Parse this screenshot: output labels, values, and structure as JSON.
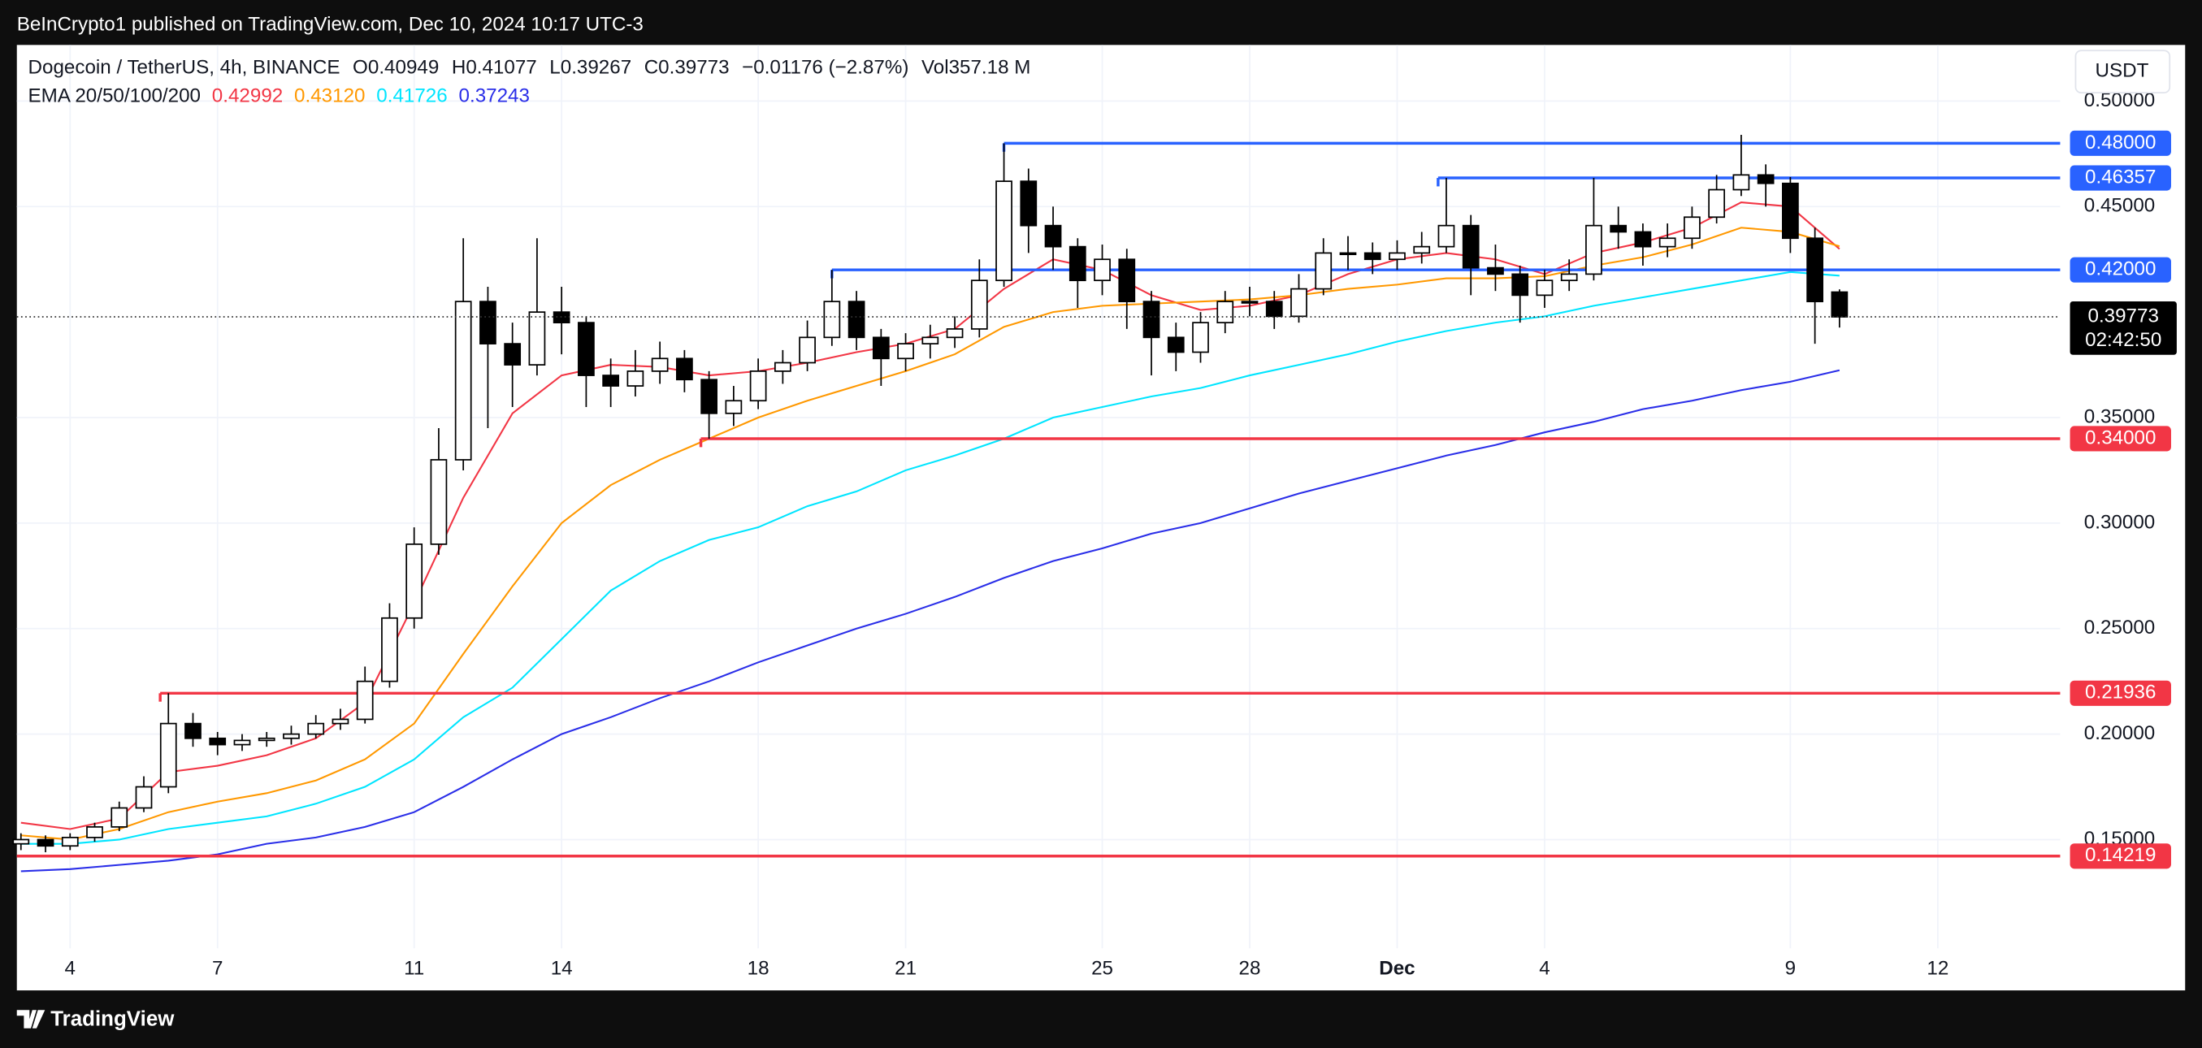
{
  "header": {
    "published": "BeInCrypto1 published on TradingView.com, Dec 10, 2024 10:17 UTC-3"
  },
  "footer": {
    "brand": "TradingView"
  },
  "chart_data": {
    "type": "candlestick",
    "title": "Dogecoin / TetherUS, 4h, BINANCE",
    "currency": "USDT",
    "legend_labels": [
      "O",
      "H",
      "L",
      "C"
    ],
    "change": "−0.01176 (−2.87%)",
    "volume_label": "Vol",
    "volume": "357.18 M",
    "countdown": "02:42:50",
    "up_color": "#ffffff",
    "down_color": "#000000",
    "grid": true,
    "xlim": [
      "2024-11-02T22:00",
      "2024-12-14T11:45"
    ],
    "ylim": [
      0.0985,
      0.5266
    ],
    "xticks": [
      {
        "value": "2024-11-04T00:00",
        "label": "4"
      },
      {
        "value": "2024-11-07T00:00",
        "label": "7"
      },
      {
        "value": "2024-11-11T00:00",
        "label": "11"
      },
      {
        "value": "2024-11-14T00:00",
        "label": "14"
      },
      {
        "value": "2024-11-18T00:00",
        "label": "18"
      },
      {
        "value": "2024-11-21T00:00",
        "label": "21"
      },
      {
        "value": "2024-11-25T00:00",
        "label": "25"
      },
      {
        "value": "2024-11-28T00:00",
        "label": "28"
      },
      {
        "value": "2024-12-01T00:00",
        "label": "Dec"
      },
      {
        "value": "2024-12-04T00:00",
        "label": "4"
      },
      {
        "value": "2024-12-09T00:00",
        "label": "9"
      },
      {
        "value": "2024-12-12T00:00",
        "label": "12"
      }
    ],
    "yticks": [
      {
        "value": 0.15,
        "label": "0.15000"
      },
      {
        "value": 0.2,
        "label": "0.20000"
      },
      {
        "value": 0.25,
        "label": "0.25000"
      },
      {
        "value": 0.3,
        "label": "0.30000"
      },
      {
        "value": 0.35,
        "label": "0.35000"
      },
      {
        "value": 0.45,
        "label": "0.45000"
      },
      {
        "value": 0.5,
        "label": "0.50000"
      }
    ],
    "x": [
      "2024-11-03T00:00",
      "2024-11-03T12:00",
      "2024-11-04T00:00",
      "2024-11-04T12:00",
      "2024-11-05T00:00",
      "2024-11-05T12:00",
      "2024-11-06T00:00",
      "2024-11-06T12:00",
      "2024-11-07T00:00",
      "2024-11-07T12:00",
      "2024-11-08T00:00",
      "2024-11-08T12:00",
      "2024-11-09T00:00",
      "2024-11-09T12:00",
      "2024-11-10T00:00",
      "2024-11-10T12:00",
      "2024-11-11T00:00",
      "2024-11-11T12:00",
      "2024-11-12T00:00",
      "2024-11-12T12:00",
      "2024-11-13T00:00",
      "2024-11-13T12:00",
      "2024-11-14T00:00",
      "2024-11-14T12:00",
      "2024-11-15T00:00",
      "2024-11-15T12:00",
      "2024-11-16T00:00",
      "2024-11-16T12:00",
      "2024-11-17T00:00",
      "2024-11-17T12:00",
      "2024-11-18T00:00",
      "2024-11-18T12:00",
      "2024-11-19T00:00",
      "2024-11-19T12:00",
      "2024-11-20T00:00",
      "2024-11-20T12:00",
      "2024-11-21T00:00",
      "2024-11-21T12:00",
      "2024-11-22T00:00",
      "2024-11-22T12:00",
      "2024-11-23T00:00",
      "2024-11-23T12:00",
      "2024-11-24T00:00",
      "2024-11-24T12:00",
      "2024-11-25T00:00",
      "2024-11-25T12:00",
      "2024-11-26T00:00",
      "2024-11-26T12:00",
      "2024-11-27T00:00",
      "2024-11-27T12:00",
      "2024-11-28T00:00",
      "2024-11-28T12:00",
      "2024-11-29T00:00",
      "2024-11-29T12:00",
      "2024-11-30T00:00",
      "2024-11-30T12:00",
      "2024-12-01T00:00",
      "2024-12-01T12:00",
      "2024-12-02T00:00",
      "2024-12-02T12:00",
      "2024-12-03T00:00",
      "2024-12-03T12:00",
      "2024-12-04T00:00",
      "2024-12-04T12:00",
      "2024-12-05T00:00",
      "2024-12-05T12:00",
      "2024-12-06T00:00",
      "2024-12-06T12:00",
      "2024-12-07T00:00",
      "2024-12-07T12:00",
      "2024-12-08T00:00",
      "2024-12-08T12:00",
      "2024-12-09T00:00",
      "2024-12-09T12:00",
      "2024-12-10T00:00"
    ],
    "open": [
      0.148,
      0.15,
      0.147,
      0.151,
      0.156,
      0.165,
      0.175,
      0.205,
      0.198,
      0.195,
      0.197,
      0.198,
      0.2,
      0.205,
      0.207,
      0.225,
      0.255,
      0.29,
      0.33,
      0.405,
      0.385,
      0.375,
      0.4,
      0.395,
      0.37,
      0.365,
      0.372,
      0.378,
      0.368,
      0.352,
      0.358,
      0.372,
      0.376,
      0.388,
      0.405,
      0.388,
      0.378,
      0.385,
      0.388,
      0.392,
      0.415,
      0.462,
      0.441,
      0.431,
      0.415,
      0.425,
      0.405,
      0.388,
      0.381,
      0.395,
      0.405,
      0.405,
      0.398,
      0.411,
      0.428,
      0.428,
      0.425,
      0.428,
      0.431,
      0.441,
      0.421,
      0.418,
      0.408,
      0.415,
      0.418,
      0.441,
      0.438,
      0.431,
      0.435,
      0.445,
      0.458,
      0.465,
      0.461,
      0.435,
      0.40949
    ],
    "high": [
      0.153,
      0.152,
      0.153,
      0.158,
      0.168,
      0.18,
      0.2194,
      0.21,
      0.201,
      0.2,
      0.201,
      0.204,
      0.209,
      0.212,
      0.232,
      0.262,
      0.298,
      0.345,
      0.435,
      0.412,
      0.395,
      0.435,
      0.412,
      0.398,
      0.378,
      0.382,
      0.386,
      0.382,
      0.372,
      0.365,
      0.378,
      0.382,
      0.396,
      0.42,
      0.41,
      0.392,
      0.39,
      0.394,
      0.398,
      0.425,
      0.48,
      0.468,
      0.45,
      0.435,
      0.432,
      0.43,
      0.41,
      0.395,
      0.4,
      0.41,
      0.412,
      0.41,
      0.418,
      0.435,
      0.436,
      0.433,
      0.434,
      0.438,
      0.4636,
      0.446,
      0.432,
      0.422,
      0.42,
      0.425,
      0.4636,
      0.45,
      0.442,
      0.442,
      0.45,
      0.465,
      0.484,
      0.47,
      0.464,
      0.44,
      0.41077
    ],
    "low": [
      0.145,
      0.144,
      0.145,
      0.149,
      0.154,
      0.163,
      0.172,
      0.194,
      0.19,
      0.192,
      0.194,
      0.195,
      0.198,
      0.202,
      0.205,
      0.222,
      0.25,
      0.285,
      0.325,
      0.345,
      0.355,
      0.37,
      0.38,
      0.355,
      0.355,
      0.36,
      0.366,
      0.362,
      0.34,
      0.346,
      0.354,
      0.366,
      0.372,
      0.384,
      0.382,
      0.365,
      0.372,
      0.378,
      0.383,
      0.388,
      0.412,
      0.428,
      0.42,
      0.402,
      0.408,
      0.392,
      0.37,
      0.372,
      0.376,
      0.39,
      0.398,
      0.392,
      0.395,
      0.408,
      0.42,
      0.418,
      0.42,
      0.423,
      0.428,
      0.408,
      0.41,
      0.395,
      0.402,
      0.41,
      0.415,
      0.43,
      0.422,
      0.426,
      0.43,
      0.442,
      0.455,
      0.45,
      0.428,
      0.385,
      0.39267
    ],
    "close": [
      0.15,
      0.147,
      0.151,
      0.156,
      0.165,
      0.175,
      0.205,
      0.198,
      0.195,
      0.197,
      0.198,
      0.2,
      0.205,
      0.207,
      0.225,
      0.255,
      0.29,
      0.33,
      0.405,
      0.385,
      0.375,
      0.4,
      0.395,
      0.37,
      0.365,
      0.372,
      0.378,
      0.368,
      0.352,
      0.358,
      0.372,
      0.376,
      0.388,
      0.405,
      0.388,
      0.378,
      0.385,
      0.388,
      0.392,
      0.415,
      0.462,
      0.441,
      0.431,
      0.415,
      0.425,
      0.405,
      0.388,
      0.381,
      0.395,
      0.405,
      0.405,
      0.398,
      0.411,
      0.428,
      0.428,
      0.425,
      0.428,
      0.431,
      0.441,
      0.421,
      0.418,
      0.408,
      0.415,
      0.418,
      0.441,
      0.438,
      0.431,
      0.435,
      0.445,
      0.458,
      0.465,
      0.461,
      0.435,
      0.405,
      0.39773
    ],
    "indicator": {
      "label": "EMA 20/50/100/200",
      "x": [
        "2024-11-03T00:00",
        "2024-11-04T00:00",
        "2024-11-05T00:00",
        "2024-11-06T00:00",
        "2024-11-07T00:00",
        "2024-11-08T00:00",
        "2024-11-09T00:00",
        "2024-11-10T00:00",
        "2024-11-11T00:00",
        "2024-11-12T00:00",
        "2024-11-13T00:00",
        "2024-11-14T00:00",
        "2024-11-15T00:00",
        "2024-11-16T00:00",
        "2024-11-17T00:00",
        "2024-11-18T00:00",
        "2024-11-19T00:00",
        "2024-11-20T00:00",
        "2024-11-21T00:00",
        "2024-11-22T00:00",
        "2024-11-23T00:00",
        "2024-11-24T00:00",
        "2024-11-25T00:00",
        "2024-11-26T00:00",
        "2024-11-27T00:00",
        "2024-11-28T00:00",
        "2024-11-29T00:00",
        "2024-11-30T00:00",
        "2024-12-01T00:00",
        "2024-12-02T00:00",
        "2024-12-03T00:00",
        "2024-12-04T00:00",
        "2024-12-05T00:00",
        "2024-12-06T00:00",
        "2024-12-07T00:00",
        "2024-12-08T00:00",
        "2024-12-09T00:00",
        "2024-12-10T00:00"
      ],
      "series": [
        {
          "color": "#f23645",
          "value_label": "0.42992",
          "values": [
            0.158,
            0.155,
            0.16,
            0.182,
            0.185,
            0.19,
            0.198,
            0.215,
            0.262,
            0.312,
            0.352,
            0.37,
            0.375,
            0.374,
            0.37,
            0.372,
            0.376,
            0.381,
            0.385,
            0.392,
            0.411,
            0.425,
            0.42,
            0.408,
            0.401,
            0.403,
            0.408,
            0.418,
            0.425,
            0.428,
            0.425,
            0.418,
            0.428,
            0.433,
            0.44,
            0.452,
            0.45,
            0.42992
          ]
        },
        {
          "color": "#ff9800",
          "value_label": "0.43120",
          "values": [
            0.152,
            0.15,
            0.155,
            0.163,
            0.168,
            0.172,
            0.178,
            0.188,
            0.205,
            0.238,
            0.27,
            0.3,
            0.318,
            0.33,
            0.34,
            0.35,
            0.358,
            0.365,
            0.372,
            0.38,
            0.393,
            0.4,
            0.403,
            0.404,
            0.405,
            0.406,
            0.408,
            0.411,
            0.413,
            0.416,
            0.416,
            0.417,
            0.422,
            0.426,
            0.432,
            0.44,
            0.438,
            0.4312
          ]
        },
        {
          "color": "#00e5ff",
          "value_label": "0.41726",
          "values": [
            0.148,
            0.148,
            0.15,
            0.155,
            0.158,
            0.161,
            0.167,
            0.175,
            0.188,
            0.208,
            0.222,
            0.245,
            0.268,
            0.282,
            0.292,
            0.298,
            0.308,
            0.315,
            0.325,
            0.332,
            0.34,
            0.35,
            0.355,
            0.36,
            0.364,
            0.37,
            0.375,
            0.38,
            0.386,
            0.391,
            0.395,
            0.398,
            0.403,
            0.407,
            0.411,
            0.415,
            0.419,
            0.41726
          ]
        },
        {
          "color": "#2a2ee8",
          "value_label": "0.37243",
          "values": [
            0.135,
            0.136,
            0.138,
            0.14,
            0.143,
            0.148,
            0.151,
            0.156,
            0.163,
            0.175,
            0.188,
            0.2,
            0.208,
            0.217,
            0.225,
            0.234,
            0.242,
            0.25,
            0.257,
            0.265,
            0.274,
            0.282,
            0.288,
            0.295,
            0.3,
            0.307,
            0.314,
            0.32,
            0.326,
            0.332,
            0.337,
            0.343,
            0.348,
            0.354,
            0.358,
            0.363,
            0.367,
            0.37243
          ]
        }
      ]
    },
    "levels": [
      {
        "value": 0.48,
        "label": "0.48000",
        "color": "#2962ff",
        "start": "2024-11-23T00:00"
      },
      {
        "value": 0.46357,
        "label": "0.46357",
        "color": "#2962ff",
        "start": "2024-12-01T20:00"
      },
      {
        "value": 0.42,
        "label": "0.42000",
        "color": "#2962ff",
        "start": "2024-11-19T12:00"
      },
      {
        "value": 0.34,
        "label": "0.34000",
        "color": "#f23645",
        "start": "2024-11-16T20:00"
      },
      {
        "value": 0.21936,
        "label": "0.21936",
        "color": "#f23645",
        "start": "2024-11-05T20:00"
      },
      {
        "value": 0.14219,
        "label": "0.14219",
        "color": "#f23645"
      }
    ]
  }
}
